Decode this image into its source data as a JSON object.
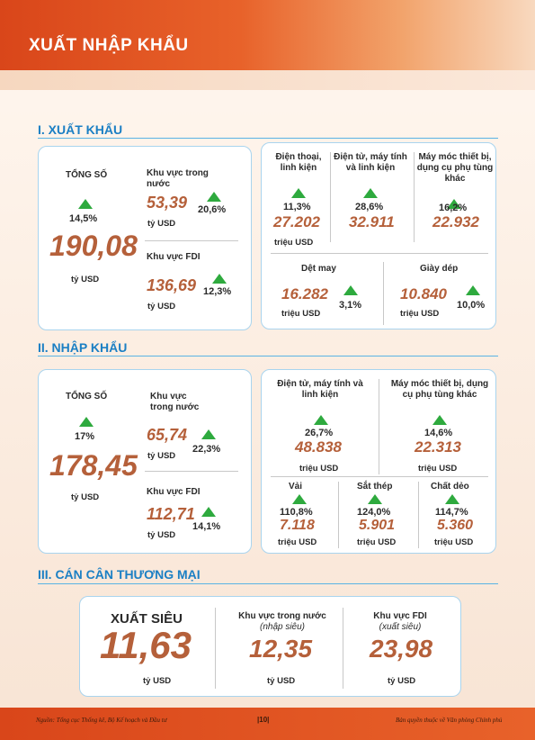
{
  "page_title": "XUẤT NHẬP KHẨU",
  "export": {
    "section_title": "I. XUẤT KHẨU",
    "total_label": "TỔNG SỐ",
    "total_pct": "14,5%",
    "total_value": "190,08",
    "total_unit": "tỷ USD",
    "domestic_label": "Khu vực trong nước",
    "domestic_value": "53,39",
    "domestic_unit": "tỷ USD",
    "domestic_pct": "20,6%",
    "fdi_label": "Khu vực FDI",
    "fdi_value": "136,69",
    "fdi_unit": "tỷ USD",
    "fdi_pct": "12,3%",
    "items": [
      {
        "label": "Điện thoại, linh kiện",
        "pct": "11,3%",
        "value": "27.202"
      },
      {
        "label": "Điện tử, máy tính và linh kiện",
        "pct": "28,6%",
        "value": "32.911"
      },
      {
        "label": "Máy móc thiết bị, dụng cụ phụ tùng khác",
        "pct": "16,2%",
        "value": "22.932"
      },
      {
        "label": "Dệt may",
        "pct": "3,1%",
        "value": "16.282"
      },
      {
        "label": "Giày dép",
        "pct": "10,0%",
        "value": "10.840"
      }
    ],
    "items_unit": "triệu USD"
  },
  "import": {
    "section_title": "II. NHẬP KHẨU",
    "total_label": "TỔNG SỐ",
    "total_pct": "17%",
    "total_value": "178,45",
    "total_unit": "tỷ USD",
    "domestic_label": "Khu vực trong nước",
    "domestic_value": "65,74",
    "domestic_unit": "tỷ USD",
    "domestic_pct": "22,3%",
    "fdi_label": "Khu vực FDI",
    "fdi_value": "112,71",
    "fdi_unit": "tỷ USD",
    "fdi_pct": "14,1%",
    "items": [
      {
        "label": "Điện tử, máy tính và linh kiện",
        "pct": "26,7%",
        "value": "48.838"
      },
      {
        "label": "Máy móc thiết bị, dụng cụ phụ tùng khác",
        "pct": "14,6%",
        "value": "22.313"
      },
      {
        "label": "Vải",
        "pct": "110,8%",
        "value": "7.118"
      },
      {
        "label": "Sắt thép",
        "pct": "124,0%",
        "value": "5.901"
      },
      {
        "label": "Chất dẻo",
        "pct": "114,7%",
        "value": "5.360"
      }
    ],
    "items_unit": "triệu USD"
  },
  "trade": {
    "section_title": "III. CÁN CÂN THƯƠNG MẠI",
    "surplus_label": "XUẤT SIÊU",
    "surplus_value": "11,63",
    "surplus_unit": "tỷ USD",
    "domestic_label": "Khu vực trong nước",
    "domestic_note": "(nhập siêu)",
    "domestic_value": "12,35",
    "domestic_unit": "tỷ USD",
    "fdi_label": "Khu vực FDI",
    "fdi_note": "(xuất siêu)",
    "fdi_value": "23,98",
    "fdi_unit": "tỷ USD"
  },
  "footer": {
    "source": "Nguồn: Tổng cục Thống kê, Bộ Kế hoạch và Đầu tư",
    "page": "|10|",
    "copyright": "Bản quyền thuộc về Văn phòng Chính phủ"
  },
  "colors": {
    "accent": "#e8622a",
    "section_blue": "#1b7fc4",
    "value_brown": "#b5603a",
    "up_green": "#2eaa3e"
  }
}
